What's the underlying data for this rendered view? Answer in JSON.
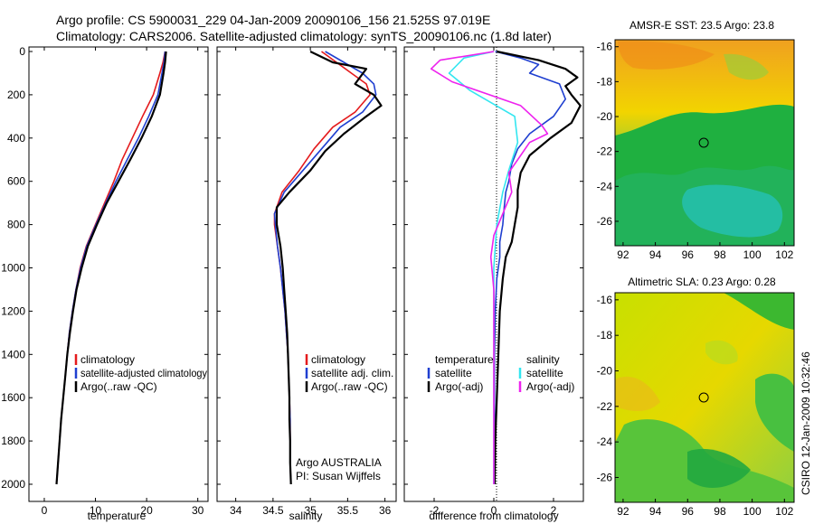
{
  "title": {
    "line1": "Argo profile: CS 5900031_229 04-Jan-2009 20090106_156 21.525S 97.019E",
    "line2": "Climatology: CARS2006. Satellite-adjusted climatology: synTS_20090106.nc (1.8d later)"
  },
  "side_label": "CSIRO 12-Jan-2009 10:32:46",
  "colors": {
    "red": "#e41a1c",
    "blue": "#1f3fd0",
    "black": "#000000",
    "cyan": "#33e6f0",
    "magenta": "#ee22ee"
  },
  "chart_data": [
    {
      "type": "line",
      "xlabel": "temperature",
      "xlim": [
        -3,
        32
      ],
      "ylim": [
        2060,
        0
      ],
      "xticks": [
        "0",
        "10",
        "20",
        "30"
      ],
      "yticks": [
        "0",
        "200",
        "400",
        "600",
        "800",
        "1000",
        "1200",
        "1400",
        "1600",
        "1800",
        "2000"
      ],
      "legend": [
        "climatology",
        "satellite-adjusted climatology",
        "Argo(..raw -QC)"
      ],
      "series": [
        {
          "name": "climatology",
          "color": "red",
          "points": [
            [
              23.6,
              0
            ],
            [
              23.2,
              50
            ],
            [
              22.6,
              100
            ],
            [
              21.3,
              200
            ],
            [
              19.2,
              300
            ],
            [
              17.2,
              400
            ],
            [
              15.2,
              500
            ],
            [
              13.6,
              600
            ],
            [
              11.8,
              700
            ],
            [
              10.0,
              800
            ],
            [
              8.2,
              900
            ],
            [
              7.0,
              1000
            ],
            [
              6.2,
              1100
            ],
            [
              5.5,
              1200
            ],
            [
              4.9,
              1300
            ],
            [
              4.5,
              1400
            ],
            [
              4.1,
              1500
            ],
            [
              3.7,
              1600
            ],
            [
              3.3,
              1700
            ],
            [
              3.0,
              1800
            ],
            [
              2.7,
              1900
            ],
            [
              2.4,
              2000
            ]
          ]
        },
        {
          "name": "satellite-adjusted climatology",
          "color": "blue",
          "points": [
            [
              23.6,
              0
            ],
            [
              23.4,
              50
            ],
            [
              23.0,
              100
            ],
            [
              22.2,
              200
            ],
            [
              20.4,
              300
            ],
            [
              18.4,
              400
            ],
            [
              16.2,
              500
            ],
            [
              14.0,
              600
            ],
            [
              12.0,
              700
            ],
            [
              10.1,
              800
            ],
            [
              8.3,
              900
            ],
            [
              7.1,
              1000
            ],
            [
              6.2,
              1100
            ],
            [
              5.5,
              1200
            ],
            [
              4.9,
              1300
            ],
            [
              4.5,
              1400
            ],
            [
              4.1,
              1500
            ],
            [
              3.7,
              1600
            ],
            [
              3.3,
              1700
            ],
            [
              3.0,
              1800
            ],
            [
              2.7,
              1900
            ],
            [
              2.4,
              2000
            ]
          ]
        },
        {
          "name": "Argo(..raw -QC)",
          "color": "black",
          "points": [
            [
              23.8,
              0
            ],
            [
              23.6,
              50
            ],
            [
              23.3,
              100
            ],
            [
              22.6,
              200
            ],
            [
              21.0,
              300
            ],
            [
              19.0,
              400
            ],
            [
              16.8,
              500
            ],
            [
              14.5,
              600
            ],
            [
              12.2,
              700
            ],
            [
              10.3,
              800
            ],
            [
              8.5,
              900
            ],
            [
              7.3,
              1000
            ],
            [
              6.3,
              1100
            ],
            [
              5.6,
              1200
            ],
            [
              5.0,
              1300
            ],
            [
              4.5,
              1400
            ],
            [
              4.1,
              1500
            ],
            [
              3.7,
              1600
            ],
            [
              3.3,
              1700
            ],
            [
              3.0,
              1800
            ],
            [
              2.7,
              1900
            ],
            [
              2.4,
              2000
            ]
          ]
        }
      ]
    },
    {
      "type": "line",
      "xlabel": "salinity",
      "xlim": [
        33.75,
        36.15
      ],
      "ylim": [
        2060,
        0
      ],
      "xticks": [
        "34",
        "34.5",
        "35",
        "35.5",
        "36"
      ],
      "legend": [
        "climatology",
        "satellite adj. clim.",
        "Argo(..raw -QC)"
      ],
      "annotations": [
        "Argo AUSTRALIA",
        "PI: Susan Wijffels"
      ],
      "series": [
        {
          "name": "climatology",
          "color": "red",
          "points": [
            [
              35.15,
              0
            ],
            [
              35.35,
              50
            ],
            [
              35.55,
              100
            ],
            [
              35.75,
              150
            ],
            [
              35.8,
              200
            ],
            [
              35.6,
              280
            ],
            [
              35.3,
              350
            ],
            [
              35.05,
              450
            ],
            [
              34.85,
              550
            ],
            [
              34.62,
              650
            ],
            [
              34.52,
              750
            ],
            [
              34.52,
              800
            ],
            [
              34.56,
              900
            ],
            [
              34.6,
              1000
            ],
            [
              34.63,
              1100
            ],
            [
              34.66,
              1200
            ],
            [
              34.68,
              1300
            ],
            [
              34.7,
              1400
            ],
            [
              34.71,
              1500
            ],
            [
              34.72,
              1600
            ],
            [
              34.73,
              1700
            ],
            [
              34.73,
              1800
            ],
            [
              34.73,
              1900
            ],
            [
              34.74,
              2000
            ]
          ]
        },
        {
          "name": "satellite adj. clim.",
          "color": "blue",
          "points": [
            [
              35.2,
              0
            ],
            [
              35.45,
              50
            ],
            [
              35.7,
              100
            ],
            [
              35.85,
              150
            ],
            [
              35.88,
              200
            ],
            [
              35.7,
              280
            ],
            [
              35.4,
              350
            ],
            [
              35.15,
              450
            ],
            [
              34.9,
              550
            ],
            [
              34.65,
              650
            ],
            [
              34.52,
              750
            ],
            [
              34.53,
              800
            ],
            [
              34.56,
              900
            ],
            [
              34.6,
              1000
            ],
            [
              34.63,
              1100
            ],
            [
              34.66,
              1200
            ],
            [
              34.68,
              1300
            ],
            [
              34.7,
              1400
            ],
            [
              34.71,
              1500
            ],
            [
              34.72,
              1600
            ],
            [
              34.73,
              1700
            ],
            [
              34.73,
              1800
            ],
            [
              34.73,
              1900
            ],
            [
              34.74,
              2000
            ]
          ]
        },
        {
          "name": "Argo(..raw -QC)",
          "color": "black",
          "points": [
            [
              35.0,
              0
            ],
            [
              35.3,
              50
            ],
            [
              35.75,
              80
            ],
            [
              35.6,
              150
            ],
            [
              35.85,
              200
            ],
            [
              35.95,
              250
            ],
            [
              35.75,
              300
            ],
            [
              35.45,
              380
            ],
            [
              35.2,
              460
            ],
            [
              35.0,
              550
            ],
            [
              34.72,
              650
            ],
            [
              34.55,
              720
            ],
            [
              34.55,
              800
            ],
            [
              34.6,
              900
            ],
            [
              34.63,
              1000
            ],
            [
              34.65,
              1100
            ],
            [
              34.67,
              1200
            ],
            [
              34.69,
              1300
            ],
            [
              34.7,
              1400
            ],
            [
              34.71,
              1500
            ],
            [
              34.72,
              1600
            ],
            [
              34.72,
              1700
            ],
            [
              34.73,
              1800
            ],
            [
              34.73,
              1900
            ],
            [
              34.74,
              2000
            ]
          ]
        }
      ]
    },
    {
      "type": "line",
      "xlabel": "difference from climatology",
      "xlim": [
        -3,
        3
      ],
      "ylim": [
        2060,
        0
      ],
      "xticks": [
        "-2",
        "0",
        "2"
      ],
      "legend_left": [
        "temperature",
        "satellite",
        "Argo(-adj)"
      ],
      "legend_right": [
        "salinity",
        "satellite",
        "Argo(-adj)"
      ],
      "series": [
        {
          "name": "temperature satellite",
          "color": "blue",
          "points": [
            [
              0.05,
              0
            ],
            [
              0.9,
              30
            ],
            [
              1.5,
              60
            ],
            [
              1.2,
              100
            ],
            [
              2.2,
              150
            ],
            [
              2.4,
              220
            ],
            [
              2.0,
              300
            ],
            [
              1.2,
              380
            ],
            [
              0.8,
              450
            ],
            [
              0.6,
              520
            ],
            [
              0.5,
              600
            ],
            [
              0.4,
              650
            ],
            [
              0.35,
              720
            ],
            [
              0.3,
              800
            ],
            [
              0.2,
              880
            ],
            [
              0.2,
              950
            ],
            [
              0.1,
              1050
            ],
            [
              0.05,
              1200
            ],
            [
              0.02,
              1400
            ],
            [
              0.02,
              1700
            ],
            [
              0.0,
              2000
            ]
          ]
        },
        {
          "name": "temperature Argo(-adj)",
          "color": "black",
          "points": [
            [
              0.1,
              0
            ],
            [
              1.5,
              40
            ],
            [
              2.4,
              80
            ],
            [
              2.8,
              120
            ],
            [
              2.4,
              160
            ],
            [
              2.6,
              200
            ],
            [
              2.9,
              250
            ],
            [
              2.6,
              330
            ],
            [
              1.9,
              400
            ],
            [
              1.2,
              480
            ],
            [
              0.9,
              560
            ],
            [
              0.8,
              640
            ],
            [
              0.8,
              720
            ],
            [
              0.7,
              800
            ],
            [
              0.6,
              880
            ],
            [
              0.4,
              950
            ],
            [
              0.3,
              1050
            ],
            [
              0.2,
              1200
            ],
            [
              0.15,
              1400
            ],
            [
              0.1,
              1600
            ],
            [
              0.05,
              1800
            ],
            [
              0.03,
              2000
            ]
          ]
        },
        {
          "name": "salinity satellite",
          "color": "cyan",
          "points": [
            [
              0.0,
              0
            ],
            [
              -1.0,
              30
            ],
            [
              -1.5,
              100
            ],
            [
              -0.8,
              180
            ],
            [
              0.7,
              300
            ],
            [
              0.8,
              420
            ],
            [
              0.5,
              550
            ],
            [
              0.3,
              650
            ],
            [
              0.1,
              800
            ],
            [
              0.0,
              1000
            ],
            [
              0.0,
              1500
            ],
            [
              0.0,
              2000
            ]
          ]
        },
        {
          "name": "salinity Argo(-adj)",
          "color": "magenta",
          "points": [
            [
              0.0,
              0
            ],
            [
              -1.8,
              40
            ],
            [
              -2.1,
              80
            ],
            [
              -1.4,
              140
            ],
            [
              0.9,
              250
            ],
            [
              1.6,
              340
            ],
            [
              1.8,
              380
            ],
            [
              1.2,
              420
            ],
            [
              0.9,
              480
            ],
            [
              0.5,
              560
            ],
            [
              0.6,
              650
            ],
            [
              0.3,
              750
            ],
            [
              0.0,
              850
            ],
            [
              -0.1,
              950
            ],
            [
              0.0,
              1100
            ],
            [
              0.0,
              1500
            ],
            [
              0.0,
              2000
            ]
          ]
        }
      ]
    },
    {
      "type": "heatmap",
      "title": "AMSR-E SST: 23.5 Argo: 23.8",
      "xlim": [
        91.5,
        102.6
      ],
      "ylim": [
        -27.4,
        -15.6
      ],
      "xticks": [
        "92",
        "94",
        "96",
        "98",
        "100",
        "102"
      ],
      "yticks": [
        "-16",
        "-18",
        "-20",
        "-22",
        "-24",
        "-26"
      ],
      "marker": [
        97.0,
        -21.5
      ]
    },
    {
      "type": "heatmap",
      "title": "Altimetric SLA: 0.23 Argo: 0.28",
      "xlim": [
        91.5,
        102.6
      ],
      "ylim": [
        -27.4,
        -15.6
      ],
      "xticks": [
        "92",
        "94",
        "96",
        "98",
        "100",
        "102"
      ],
      "yticks": [
        "-16",
        "-18",
        "-20",
        "-22",
        "-24",
        "-26"
      ],
      "marker": [
        97.0,
        -21.5
      ]
    }
  ]
}
